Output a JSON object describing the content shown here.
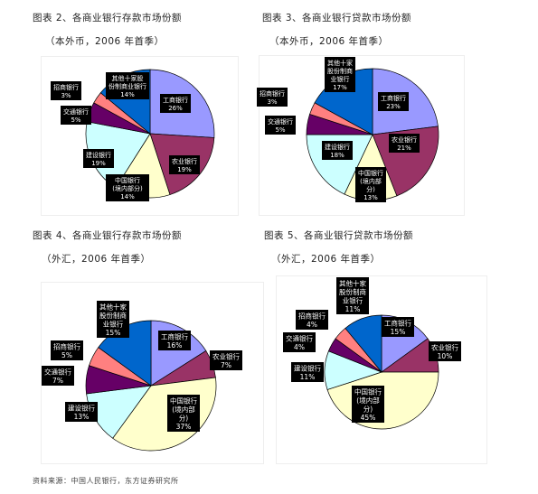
{
  "charts": [
    {
      "title": "图表 2、各商业银行存款市场份额",
      "subtitle": "（本外币，2006 年首季）"
    },
    {
      "title": "图表 3、各商业银行贷款市场份额",
      "subtitle": "（本外币，2006 年首季）"
    },
    {
      "title": "图表 4、各商业银行存款市场份额",
      "subtitle": "（外汇，2006 年首季）"
    },
    {
      "title": "图表 5、各商业银行贷款市场份额",
      "subtitle": "（外汇，2006 年首季）"
    }
  ],
  "source": "资料来源：中国人民银行，东方证券研究所",
  "chart_data": [
    {
      "type": "pie",
      "title": "图表 2、各商业银行存款市场份额",
      "subtitle": "（本外币，2006 年首季）",
      "slices": [
        {
          "label": "工商银行",
          "value": 26,
          "color": "#9999ff"
        },
        {
          "label": "农业银行",
          "value": 19,
          "color": "#993366"
        },
        {
          "label": "中国银行（境内部分）",
          "value": 14,
          "color": "#ffffcc"
        },
        {
          "label": "建设银行",
          "value": 19,
          "color": "#ccffff"
        },
        {
          "label": "交通银行",
          "value": 5,
          "color": "#660066"
        },
        {
          "label": "招商银行",
          "value": 3,
          "color": "#ff8080"
        },
        {
          "label": "其他十家股份制商业银行",
          "value": 14,
          "color": "#0066cc"
        }
      ]
    },
    {
      "type": "pie",
      "title": "图表 3、各商业银行贷款市场份额",
      "subtitle": "（本外币，2006 年首季）",
      "slices": [
        {
          "label": "工商银行",
          "value": 23,
          "color": "#9999ff"
        },
        {
          "label": "农业银行",
          "value": 21,
          "color": "#993366"
        },
        {
          "label": "中国银行（境内部分）",
          "value": 13,
          "color": "#ffffcc"
        },
        {
          "label": "建设银行",
          "value": 18,
          "color": "#ccffff"
        },
        {
          "label": "交通银行",
          "value": 5,
          "color": "#660066"
        },
        {
          "label": "招商银行",
          "value": 3,
          "color": "#ff8080"
        },
        {
          "label": "其他十家股份制商业银行",
          "value": 17,
          "color": "#0066cc"
        }
      ]
    },
    {
      "type": "pie",
      "title": "图表 4、各商业银行存款市场份额",
      "subtitle": "（外汇，2006 年首季）",
      "slices": [
        {
          "label": "工商银行",
          "value": 16,
          "color": "#9999ff"
        },
        {
          "label": "农业银行",
          "value": 7,
          "color": "#993366"
        },
        {
          "label": "中国银行（境内部分）",
          "value": 37,
          "color": "#ffffcc"
        },
        {
          "label": "建设银行",
          "value": 13,
          "color": "#ccffff"
        },
        {
          "label": "交通银行",
          "value": 7,
          "color": "#660066"
        },
        {
          "label": "招商银行",
          "value": 5,
          "color": "#ff8080"
        },
        {
          "label": "其他十家股份制商业银行",
          "value": 15,
          "color": "#0066cc"
        }
      ]
    },
    {
      "type": "pie",
      "title": "图表 5、各商业银行贷款市场份额",
      "subtitle": "（外汇，2006 年首季）",
      "slices": [
        {
          "label": "工商银行",
          "value": 15,
          "color": "#9999ff"
        },
        {
          "label": "农业银行",
          "value": 10,
          "color": "#993366"
        },
        {
          "label": "中国银行（境内部分）",
          "value": 45,
          "color": "#ffffcc"
        },
        {
          "label": "建设银行",
          "value": 11,
          "color": "#ccffff"
        },
        {
          "label": "交通银行",
          "value": 4,
          "color": "#660066"
        },
        {
          "label": "招商银行",
          "value": 4,
          "color": "#ff8080"
        },
        {
          "label": "其他十家股份制商业银行",
          "value": 11,
          "color": "#0066cc"
        }
      ]
    }
  ]
}
